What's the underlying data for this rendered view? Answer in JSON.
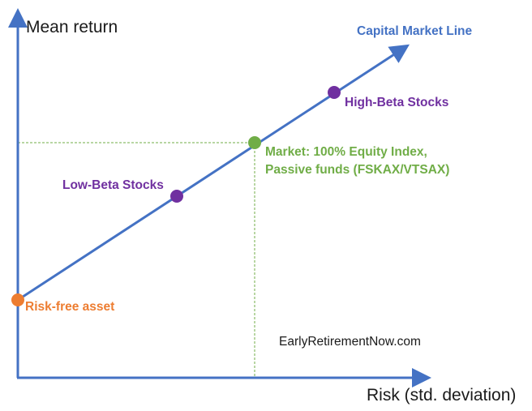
{
  "axes": {
    "y_label": "Mean return",
    "x_label": "Risk (std. deviation)"
  },
  "line": {
    "label": "Capital Market Line"
  },
  "points": {
    "risk_free": {
      "label": "Risk-free asset"
    },
    "low_beta": {
      "label": "Low-Beta Stocks"
    },
    "market": {
      "label_line1": "Market: 100% Equity Index,",
      "label_line2": "Passive funds (FSKAX/VTSAX)"
    },
    "high_beta": {
      "label": "High-Beta Stocks"
    }
  },
  "watermark": "EarlyRetirementNow.com",
  "colors": {
    "axis": "#4472c4",
    "line": "#4472c4",
    "guide": "#70ad47",
    "risk_free": "#ed7d31",
    "market": "#70ad47",
    "beta_points": "#7030a0"
  }
}
